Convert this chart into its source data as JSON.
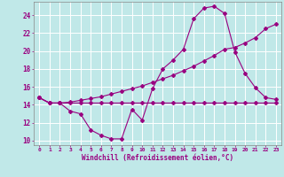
{
  "background_color": "#c0e8e8",
  "line_color": "#990080",
  "grid_color": "#ffffff",
  "xlabel": "Windchill (Refroidissement éolien,°C)",
  "xlim": [
    -0.5,
    23.5
  ],
  "ylim": [
    9.5,
    25.5
  ],
  "xticks": [
    0,
    1,
    2,
    3,
    4,
    5,
    6,
    7,
    8,
    9,
    10,
    11,
    12,
    13,
    14,
    15,
    16,
    17,
    18,
    19,
    20,
    21,
    22,
    23
  ],
  "yticks": [
    10,
    12,
    14,
    16,
    18,
    20,
    22,
    24
  ],
  "series1_x": [
    0,
    1,
    2,
    3,
    4,
    5,
    6,
    7,
    8,
    9,
    10,
    11,
    12,
    13,
    14,
    15,
    16,
    17,
    18,
    19,
    20,
    21,
    22,
    23
  ],
  "series1_y": [
    14.8,
    14.2,
    14.2,
    13.3,
    13.0,
    11.2,
    10.6,
    10.2,
    10.2,
    13.5,
    12.3,
    15.8,
    18.0,
    19.0,
    20.2,
    23.6,
    24.8,
    25.0,
    24.2,
    19.9,
    17.5,
    15.9,
    14.8,
    14.6
  ],
  "series2_x": [
    0,
    1,
    2,
    3,
    4,
    5,
    6,
    7,
    8,
    9,
    10,
    11,
    12,
    13,
    14,
    15,
    16,
    17,
    18,
    19,
    20,
    21,
    22,
    23
  ],
  "series2_y": [
    14.8,
    14.2,
    14.2,
    14.3,
    14.5,
    14.7,
    14.9,
    15.2,
    15.5,
    15.8,
    16.1,
    16.5,
    16.9,
    17.3,
    17.8,
    18.3,
    18.9,
    19.5,
    20.2,
    20.4,
    20.9,
    21.5,
    22.5,
    23.0
  ],
  "series3_x": [
    0,
    1,
    2,
    3,
    4,
    5,
    6,
    7,
    8,
    9,
    10,
    11,
    12,
    13,
    14,
    15,
    16,
    17,
    18,
    19,
    20,
    21,
    22,
    23
  ],
  "series3_y": [
    14.8,
    14.2,
    14.2,
    14.2,
    14.2,
    14.2,
    14.2,
    14.2,
    14.2,
    14.2,
    14.2,
    14.2,
    14.2,
    14.2,
    14.2,
    14.2,
    14.2,
    14.2,
    14.2,
    14.2,
    14.2,
    14.2,
    14.2,
    14.2
  ]
}
